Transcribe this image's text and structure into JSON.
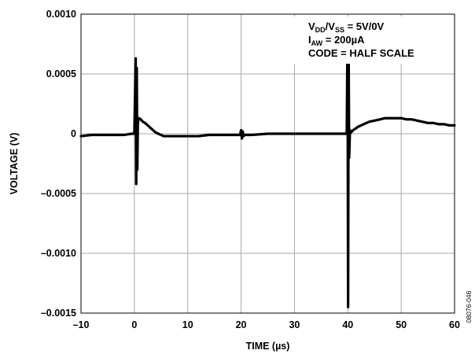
{
  "chart_data": {
    "type": "line",
    "title": "",
    "xlabel": "TIME (µs)",
    "ylabel": "VOLTAGE (V)",
    "xlim": [
      -10,
      60
    ],
    "ylim": [
      -0.0015,
      0.001
    ],
    "xticks": [
      -10,
      0,
      10,
      20,
      30,
      40,
      50,
      60
    ],
    "xtick_labels": [
      "–10",
      "0",
      "10",
      "20",
      "30",
      "40",
      "50",
      "60"
    ],
    "yticks": [
      0.001,
      0.0005,
      0,
      -0.0005,
      -0.001,
      -0.0015
    ],
    "ytick_labels": [
      "0.0010",
      "0.0005",
      "0",
      "–0.0005",
      "–0.0010",
      "–0.0015"
    ],
    "grid": true,
    "annotations": [
      {
        "base": "V",
        "sub": "DD",
        "mid": "/V",
        "sub2": "SS",
        "rest": " = 5V/0V"
      },
      {
        "base": "I",
        "sub": "AW",
        "rest": " = 200µA"
      },
      {
        "text": "CODE = HALF SCALE"
      }
    ],
    "figure_id": "08076-046",
    "series": [
      {
        "x": [
          -10,
          -8,
          -6,
          -4,
          -2,
          -0.5,
          0,
          0.25,
          0.35,
          0.45,
          0.55,
          0.65,
          0.75,
          0.9,
          1.2,
          1.6,
          2.0,
          2.5,
          3.0,
          3.5,
          4.0,
          4.5,
          5.0,
          5.5,
          6.0,
          7.0,
          8.0,
          10.0,
          12.0,
          14.0,
          16.0,
          18.0,
          19.8,
          20.0,
          20.15,
          20.3,
          20.45,
          20.7,
          22.0,
          25.0,
          28.0,
          31.0,
          34.0,
          37.0,
          39.0,
          39.8,
          39.95,
          40.05,
          40.15,
          40.25,
          40.4,
          40.6,
          41.0,
          42.0,
          43.0,
          44.0,
          45.0,
          46.0,
          47.0,
          48.0,
          49.0,
          50.0,
          51.0,
          52.0,
          53.0,
          54.0,
          55.0,
          56.0,
          57.0,
          58.0,
          59.0,
          60.0
        ],
        "y": [
          -2e-05,
          -1e-05,
          -1e-05,
          -1e-05,
          -1e-05,
          0.0,
          0.0,
          0.00063,
          -0.00042,
          0.00055,
          -0.0003,
          8e-05,
          0.00012,
          0.00013,
          0.00012,
          0.0001,
          9e-05,
          7e-05,
          5e-05,
          3e-05,
          1e-05,
          0.0,
          -1e-05,
          -2e-05,
          -2e-05,
          -2e-05,
          -2e-05,
          -2e-05,
          -2e-05,
          -1e-05,
          -1e-05,
          -1e-05,
          -1e-05,
          3e-05,
          -4e-05,
          2e-05,
          -2e-05,
          -1e-05,
          -1e-05,
          0.0,
          0.0,
          0.0,
          0.0,
          0.0,
          0.0,
          0.0,
          0.00088,
          -0.00145,
          0.0007,
          -0.0002,
          3e-05,
          1e-05,
          3e-05,
          6e-05,
          8e-05,
          0.0001,
          0.00011,
          0.00012,
          0.00013,
          0.00013,
          0.00013,
          0.00013,
          0.00012,
          0.00012,
          0.00011,
          0.0001,
          9e-05,
          9e-05,
          8e-05,
          8e-05,
          7e-05,
          7e-05
        ]
      }
    ]
  }
}
